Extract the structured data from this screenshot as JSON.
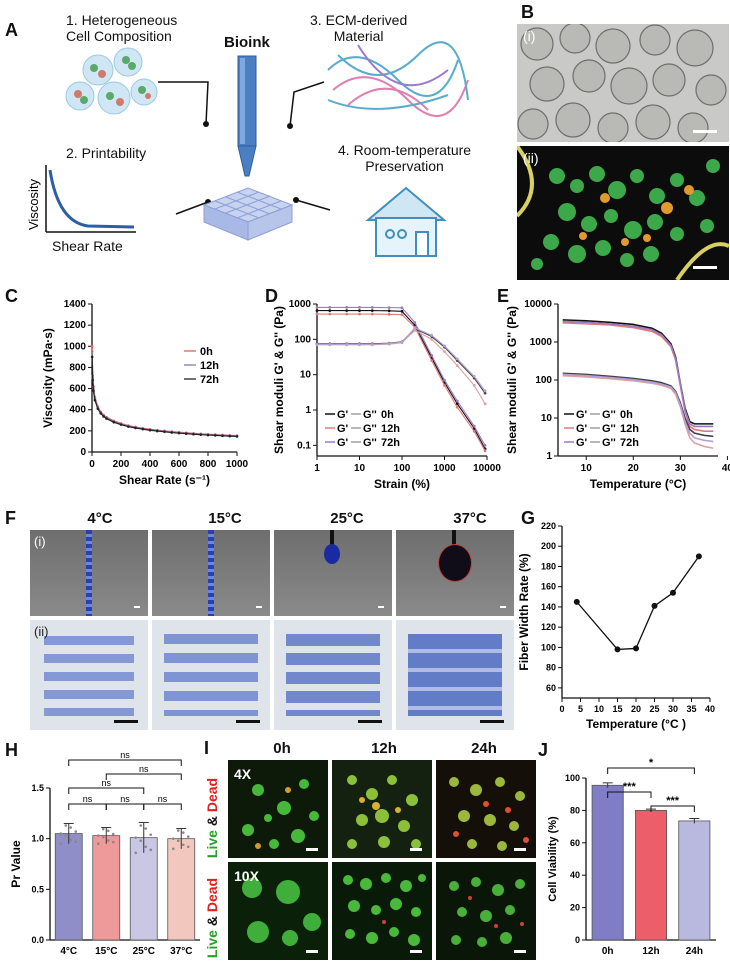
{
  "panel_labels": {
    "A": "A",
    "B": "B",
    "C": "C",
    "D": "D",
    "E": "E",
    "F": "F",
    "G": "G",
    "H": "H",
    "I": "I",
    "J": "J"
  },
  "panel_a": {
    "center_title": "Bioink",
    "item1": "1. Heterogeneous",
    "item1b": "Cell Composition",
    "item2": "2. Printability",
    "item3": "3. ECM-derived",
    "item3b": "Material",
    "item4": "4. Room-temperature",
    "item4b": "Preservation",
    "mini_x": "Shear Rate",
    "mini_y": "Viscosity"
  },
  "panel_b": {
    "sub1": "(i)",
    "sub2": "(ii)"
  },
  "panel_f": {
    "temps": [
      "4°C",
      "15°C",
      "25°C",
      "37°C"
    ],
    "sub1": "(i)",
    "sub2": "(ii)"
  },
  "panel_i": {
    "times": [
      "0h",
      "12h",
      "24h"
    ],
    "mag1": "4X",
    "mag2": "10X",
    "live": "Live",
    "amp": " & ",
    "dead": "Dead"
  },
  "chart_data": [
    {
      "panel": "C",
      "type": "line",
      "xlabel": "Shear Rate  (s⁻¹)",
      "ylabel": "Viscosity (mPa·s)",
      "xlim": [
        0,
        1000
      ],
      "ylim": [
        0,
        1400
      ],
      "xticks": [
        "0",
        "200",
        "400",
        "600",
        "800",
        "1000"
      ],
      "yticks": [
        "0",
        "200",
        "400",
        "600",
        "800",
        "1000",
        "1200",
        "1400"
      ],
      "legend": [
        "0h",
        "12h",
        "72h"
      ],
      "colors": [
        "#e06060",
        "#8c7aa8",
        "#222222"
      ],
      "x": [
        1,
        5,
        10,
        20,
        40,
        60,
        80,
        100,
        150,
        200,
        250,
        300,
        350,
        400,
        450,
        500,
        550,
        600,
        650,
        700,
        750,
        800,
        850,
        900,
        950,
        1000
      ],
      "series": [
        {
          "name": "0h",
          "values": [
            1000,
            720,
            620,
            520,
            430,
            380,
            350,
            330,
            295,
            270,
            250,
            237,
            225,
            215,
            207,
            200,
            193,
            187,
            182,
            177,
            172,
            168,
            165,
            161,
            158,
            155
          ]
        },
        {
          "name": "12h",
          "values": [
            950,
            700,
            600,
            505,
            420,
            372,
            342,
            322,
            288,
            264,
            245,
            232,
            220,
            210,
            202,
            195,
            188,
            182,
            177,
            172,
            168,
            164,
            160,
            157,
            154,
            151
          ]
        },
        {
          "name": "72h",
          "values": [
            900,
            680,
            580,
            490,
            410,
            365,
            336,
            316,
            282,
            259,
            240,
            227,
            216,
            206,
            198,
            191,
            184,
            178,
            173,
            168,
            164,
            160,
            157,
            153,
            150,
            147
          ]
        }
      ]
    },
    {
      "panel": "D",
      "type": "line",
      "xlabel": "Strain (%)",
      "ylabel": "Shear moduli G' & G'' (Pa)",
      "xscale": "log",
      "yscale": "log",
      "xlim": [
        1,
        10000
      ],
      "ylim": [
        0.05,
        1000
      ],
      "xticks": [
        "1",
        "10",
        "100",
        "1000",
        "10000"
      ],
      "yticks": [
        "0.1",
        "1",
        "10",
        "100",
        "1000"
      ],
      "legend_rows": [
        [
          "G'",
          "G''",
          "0h"
        ],
        [
          "G'",
          "G''",
          "12h"
        ],
        [
          "G'",
          "G''",
          "72h"
        ]
      ],
      "x": [
        1,
        2,
        5,
        10,
        20,
        50,
        100,
        200,
        500,
        1000,
        2000,
        5000,
        9000
      ],
      "series": [
        {
          "name": "G' 0h",
          "values": [
            650,
            650,
            650,
            650,
            650,
            640,
            620,
            250,
            30,
            6,
            1.5,
            0.3,
            0.08
          ]
        },
        {
          "name": "G' 12h",
          "values": [
            520,
            520,
            520,
            520,
            520,
            510,
            500,
            220,
            25,
            5,
            1.2,
            0.25,
            0.07
          ]
        },
        {
          "name": "G' 72h",
          "values": [
            800,
            800,
            800,
            800,
            800,
            790,
            780,
            300,
            35,
            7,
            1.8,
            0.35,
            0.1
          ]
        },
        {
          "name": "G'' 0h",
          "values": [
            75,
            75,
            75,
            75,
            75,
            78,
            85,
            200,
            120,
            60,
            25,
            8,
            3
          ]
        },
        {
          "name": "G'' 12h",
          "values": [
            70,
            70,
            70,
            70,
            70,
            73,
            80,
            180,
            100,
            45,
            18,
            5,
            1.5
          ]
        },
        {
          "name": "G'' 72h",
          "values": [
            72,
            72,
            72,
            72,
            72,
            76,
            83,
            210,
            130,
            65,
            28,
            9,
            3.5
          ]
        }
      ]
    },
    {
      "panel": "E",
      "type": "line",
      "xlabel": "Temperature (°C)",
      "ylabel": "Shear moduli G' & G'' (Pa)",
      "yscale": "log",
      "xlim": [
        4,
        38
      ],
      "ylim": [
        1,
        10000
      ],
      "xticks": [
        "10",
        "20",
        "30",
        "40"
      ],
      "yticks": [
        "1",
        "10",
        "100",
        "1000",
        "10000"
      ],
      "legend_rows": [
        [
          "G'",
          "G''",
          "0h"
        ],
        [
          "G'",
          "G''",
          "12h"
        ],
        [
          "G'",
          "G''",
          "72h"
        ]
      ],
      "x": [
        5,
        10,
        15,
        20,
        24,
        26,
        28,
        29,
        30,
        31,
        32,
        33,
        35,
        37
      ],
      "series": [
        {
          "name": "G' 0h",
          "values": [
            3800,
            3600,
            3300,
            2900,
            2300,
            1700,
            900,
            400,
            80,
            18,
            8,
            7,
            7,
            7
          ]
        },
        {
          "name": "G' 12h",
          "values": [
            3200,
            3000,
            2800,
            2400,
            1900,
            1400,
            750,
            330,
            70,
            15,
            6,
            5,
            4.5,
            4.5
          ]
        },
        {
          "name": "G' 72h",
          "values": [
            3500,
            3300,
            3000,
            2600,
            2100,
            1550,
            820,
            360,
            75,
            16,
            7,
            6,
            6,
            6
          ]
        },
        {
          "name": "G'' 0h",
          "values": [
            150,
            140,
            125,
            110,
            95,
            85,
            70,
            50,
            25,
            10,
            5,
            4,
            3.5,
            3.3
          ]
        },
        {
          "name": "G'' 12h",
          "values": [
            130,
            120,
            108,
            95,
            82,
            73,
            60,
            42,
            20,
            7,
            3,
            2.2,
            1.8,
            1.6
          ]
        },
        {
          "name": "G'' 72h",
          "values": [
            140,
            130,
            116,
            102,
            88,
            78,
            65,
            46,
            22,
            8,
            4,
            3,
            2.6,
            2.4
          ]
        }
      ]
    },
    {
      "panel": "G",
      "type": "line",
      "xlabel": "Temperature (°C )",
      "ylabel": "Fiber Width Rate (%)",
      "xlim": [
        0,
        40
      ],
      "ylim": [
        50,
        220
      ],
      "xticks": [
        "0",
        "5",
        "10",
        "15",
        "20",
        "25",
        "30",
        "35",
        "40"
      ],
      "yticks": [
        "60",
        "80",
        "100",
        "120",
        "140",
        "160",
        "180",
        "200",
        "220"
      ],
      "x": [
        4,
        15,
        20,
        25,
        30,
        37
      ],
      "values": [
        145,
        98,
        99,
        141,
        154,
        190
      ]
    },
    {
      "panel": "H",
      "type": "bar",
      "ylabel": "Pr Value",
      "ylim": [
        0,
        1.5
      ],
      "yticks": [
        "0.0",
        "0.5",
        "1.0",
        "1.5"
      ],
      "categories": [
        "4°C",
        "15°C",
        "25°C",
        "37°C"
      ],
      "values": [
        1.05,
        1.03,
        1.01,
        1.0
      ],
      "errors": [
        0.1,
        0.08,
        0.15,
        0.1
      ],
      "colors": [
        "#8f8ec9",
        "#ef9a9a",
        "#c9c7e3",
        "#f2c7bd"
      ],
      "significance": [
        "ns",
        "ns",
        "ns",
        "ns",
        "ns",
        "ns"
      ]
    },
    {
      "panel": "J",
      "type": "bar",
      "ylabel": "Cell Viability (%)",
      "ylim": [
        0,
        100
      ],
      "yticks": [
        "0",
        "20",
        "40",
        "60",
        "80",
        "100"
      ],
      "categories": [
        "0h",
        "12h",
        "24h"
      ],
      "values": [
        95.5,
        80,
        73.5
      ],
      "errors": [
        1.5,
        0.8,
        1.5
      ],
      "colors": [
        "#7e7dc6",
        "#ec5f6a",
        "#b9b8de"
      ],
      "significance": [
        "***",
        "***",
        "*"
      ]
    }
  ]
}
